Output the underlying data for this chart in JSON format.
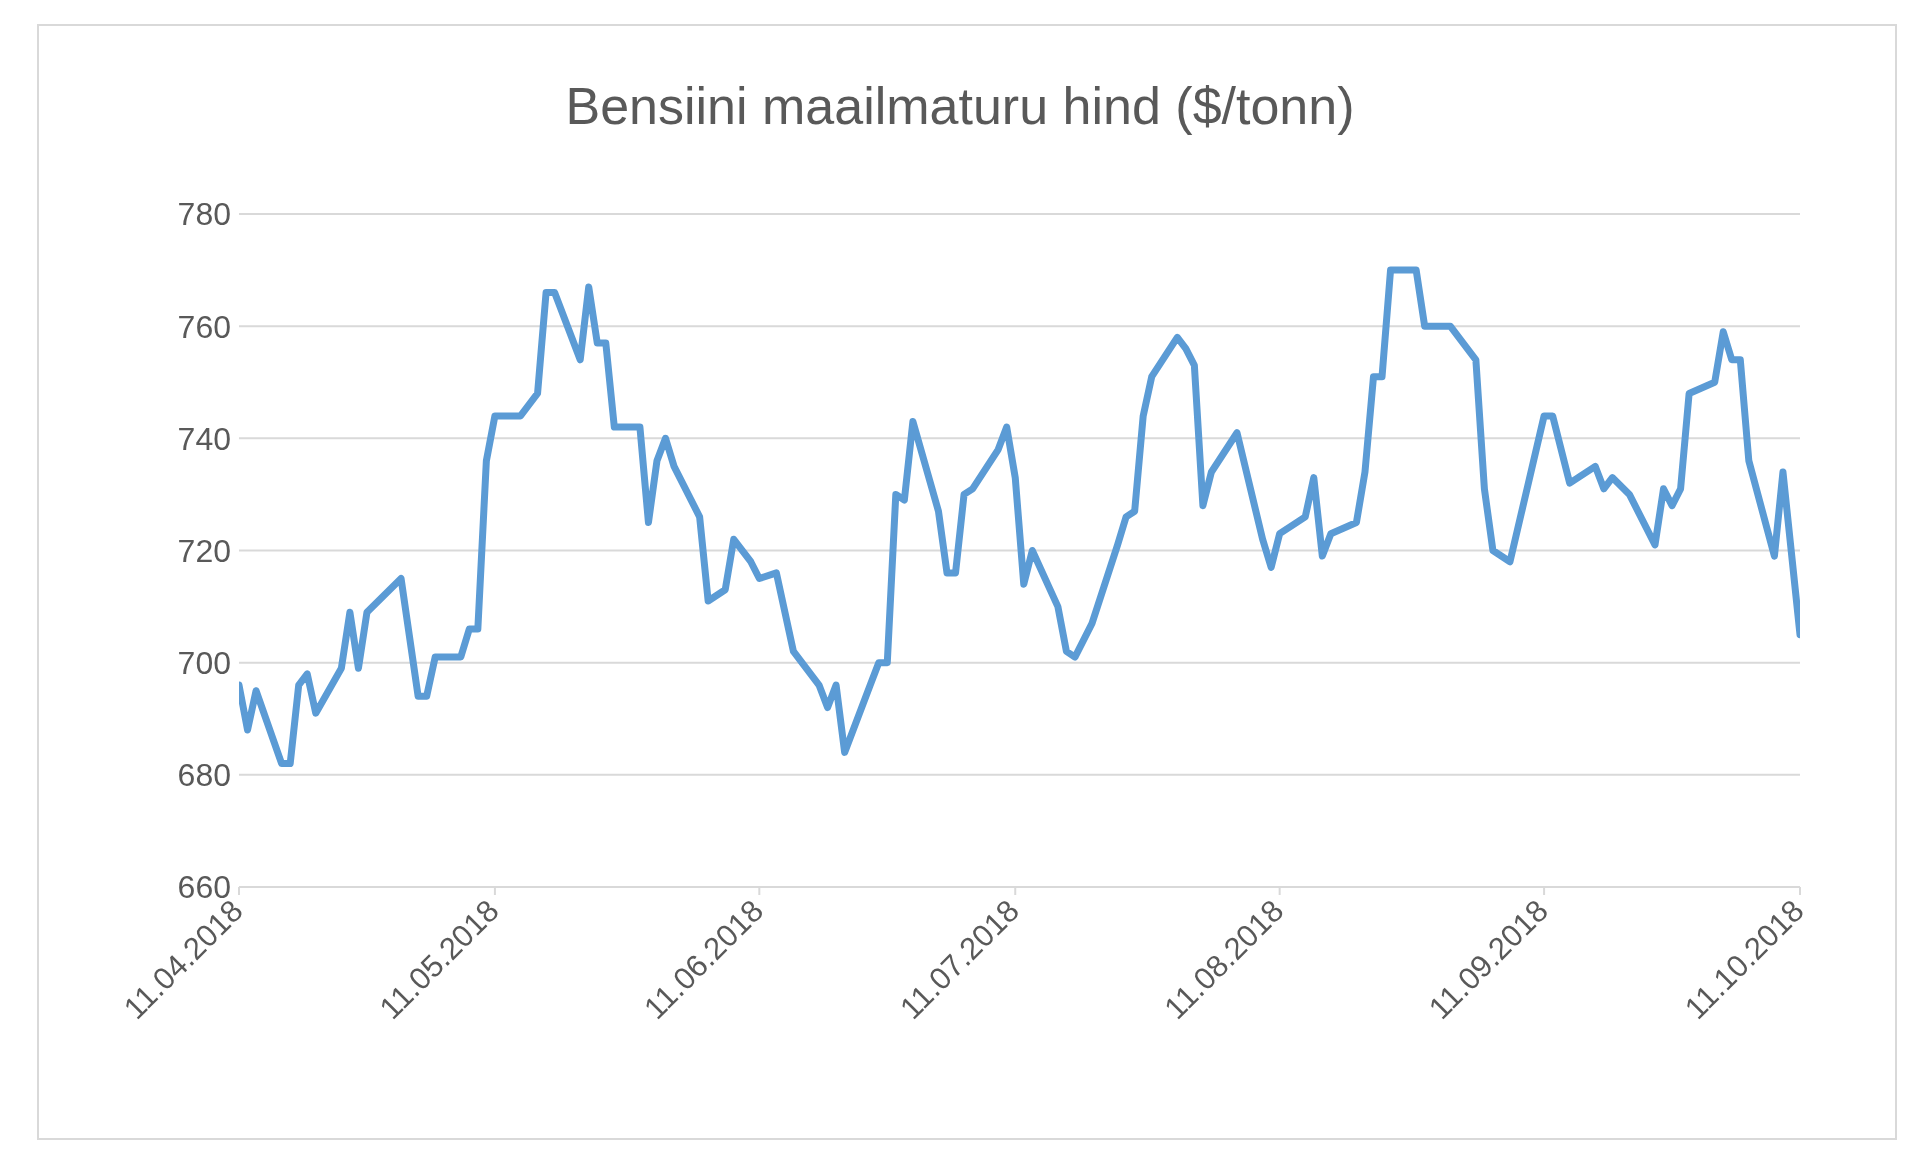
{
  "chart_data": {
    "type": "line",
    "title": "Bensiini maailmaturu hind ($/tonn)",
    "x": [
      "2018-04-11",
      "2018-04-12",
      "2018-04-13",
      "2018-04-16",
      "2018-04-17",
      "2018-04-18",
      "2018-04-19",
      "2018-04-20",
      "2018-04-23",
      "2018-04-24",
      "2018-04-25",
      "2018-04-26",
      "2018-04-30",
      "2018-05-02",
      "2018-05-03",
      "2018-05-04",
      "2018-05-07",
      "2018-05-08",
      "2018-05-09",
      "2018-05-10",
      "2018-05-11",
      "2018-05-14",
      "2018-05-16",
      "2018-05-17",
      "2018-05-18",
      "2018-05-21",
      "2018-05-22",
      "2018-05-23",
      "2018-05-24",
      "2018-05-25",
      "2018-05-28",
      "2018-05-29",
      "2018-05-30",
      "2018-05-31",
      "2018-06-01",
      "2018-06-04",
      "2018-06-05",
      "2018-06-07",
      "2018-06-08",
      "2018-06-10",
      "2018-06-11",
      "2018-06-13",
      "2018-06-15",
      "2018-06-18",
      "2018-06-19",
      "2018-06-20",
      "2018-06-21",
      "2018-06-24",
      "2018-06-25",
      "2018-06-26",
      "2018-06-27",
      "2018-06-28",
      "2018-06-29",
      "2018-07-02",
      "2018-07-03",
      "2018-07-04",
      "2018-07-05",
      "2018-07-06",
      "2018-07-09",
      "2018-07-10",
      "2018-07-11",
      "2018-07-12",
      "2018-07-13",
      "2018-07-16",
      "2018-07-17",
      "2018-07-18",
      "2018-07-20",
      "2018-07-23",
      "2018-07-24",
      "2018-07-25",
      "2018-07-26",
      "2018-07-27",
      "2018-07-30",
      "2018-07-31",
      "2018-08-01",
      "2018-08-02",
      "2018-08-03",
      "2018-08-06",
      "2018-08-09",
      "2018-08-10",
      "2018-08-11",
      "2018-08-14",
      "2018-08-15",
      "2018-08-16",
      "2018-08-17",
      "2018-08-20",
      "2018-08-21",
      "2018-08-22",
      "2018-08-23",
      "2018-08-24",
      "2018-08-27",
      "2018-08-28",
      "2018-08-31",
      "2018-09-03",
      "2018-09-04",
      "2018-09-05",
      "2018-09-07",
      "2018-09-11",
      "2018-09-12",
      "2018-09-14",
      "2018-09-17",
      "2018-09-18",
      "2018-09-19",
      "2018-09-21",
      "2018-09-24",
      "2018-09-25",
      "2018-09-26",
      "2018-09-27",
      "2018-09-28",
      "2018-10-01",
      "2018-10-02",
      "2018-10-03",
      "2018-10-04",
      "2018-10-05",
      "2018-10-08",
      "2018-10-09",
      "2018-10-11"
    ],
    "series": [
      {
        "color": "#5b9bd5",
        "values": [
          696,
          688,
          695,
          682,
          682,
          696,
          698,
          691,
          699,
          709,
          699,
          709,
          715,
          694,
          694,
          701,
          701,
          706,
          706,
          736,
          744,
          744,
          748,
          766,
          766,
          754,
          767,
          757,
          757,
          742,
          742,
          725,
          736,
          740,
          735,
          726,
          711,
          713,
          722,
          718,
          715,
          716,
          702,
          696,
          692,
          696,
          684,
          696,
          700,
          700,
          730,
          729,
          743,
          727,
          716,
          716,
          730,
          731,
          738,
          742,
          733,
          714,
          720,
          710,
          702,
          701,
          707,
          721,
          726,
          727,
          744,
          751,
          758,
          756,
          753,
          728,
          734,
          741,
          722,
          717,
          723,
          726,
          733,
          719,
          723,
          725,
          734,
          751,
          751,
          770,
          770,
          760,
          760,
          754,
          731,
          720,
          718,
          744,
          744,
          732,
          735,
          731,
          733,
          730,
          721,
          731,
          728,
          731,
          748,
          750,
          759,
          754,
          754,
          736,
          719,
          734,
          705
        ]
      }
    ],
    "xlim": [
      "2018-04-11",
      "2018-10-11"
    ],
    "xticks": [
      {
        "value": "2018-04-11",
        "label": "11.04.2018"
      },
      {
        "value": "2018-05-11",
        "label": "11.05.2018"
      },
      {
        "value": "2018-06-11",
        "label": "11.06.2018"
      },
      {
        "value": "2018-07-11",
        "label": "11.07.2018"
      },
      {
        "value": "2018-08-11",
        "label": "11.08.2018"
      },
      {
        "value": "2018-09-11",
        "label": "11.09.2018"
      },
      {
        "value": "2018-10-11",
        "label": "11.10.2018"
      }
    ],
    "ylim": [
      660,
      780
    ],
    "yticks": [
      660,
      680,
      700,
      720,
      740,
      760,
      780
    ],
    "grid": "y",
    "legend": false,
    "marker": "none",
    "line_style": "solid"
  }
}
